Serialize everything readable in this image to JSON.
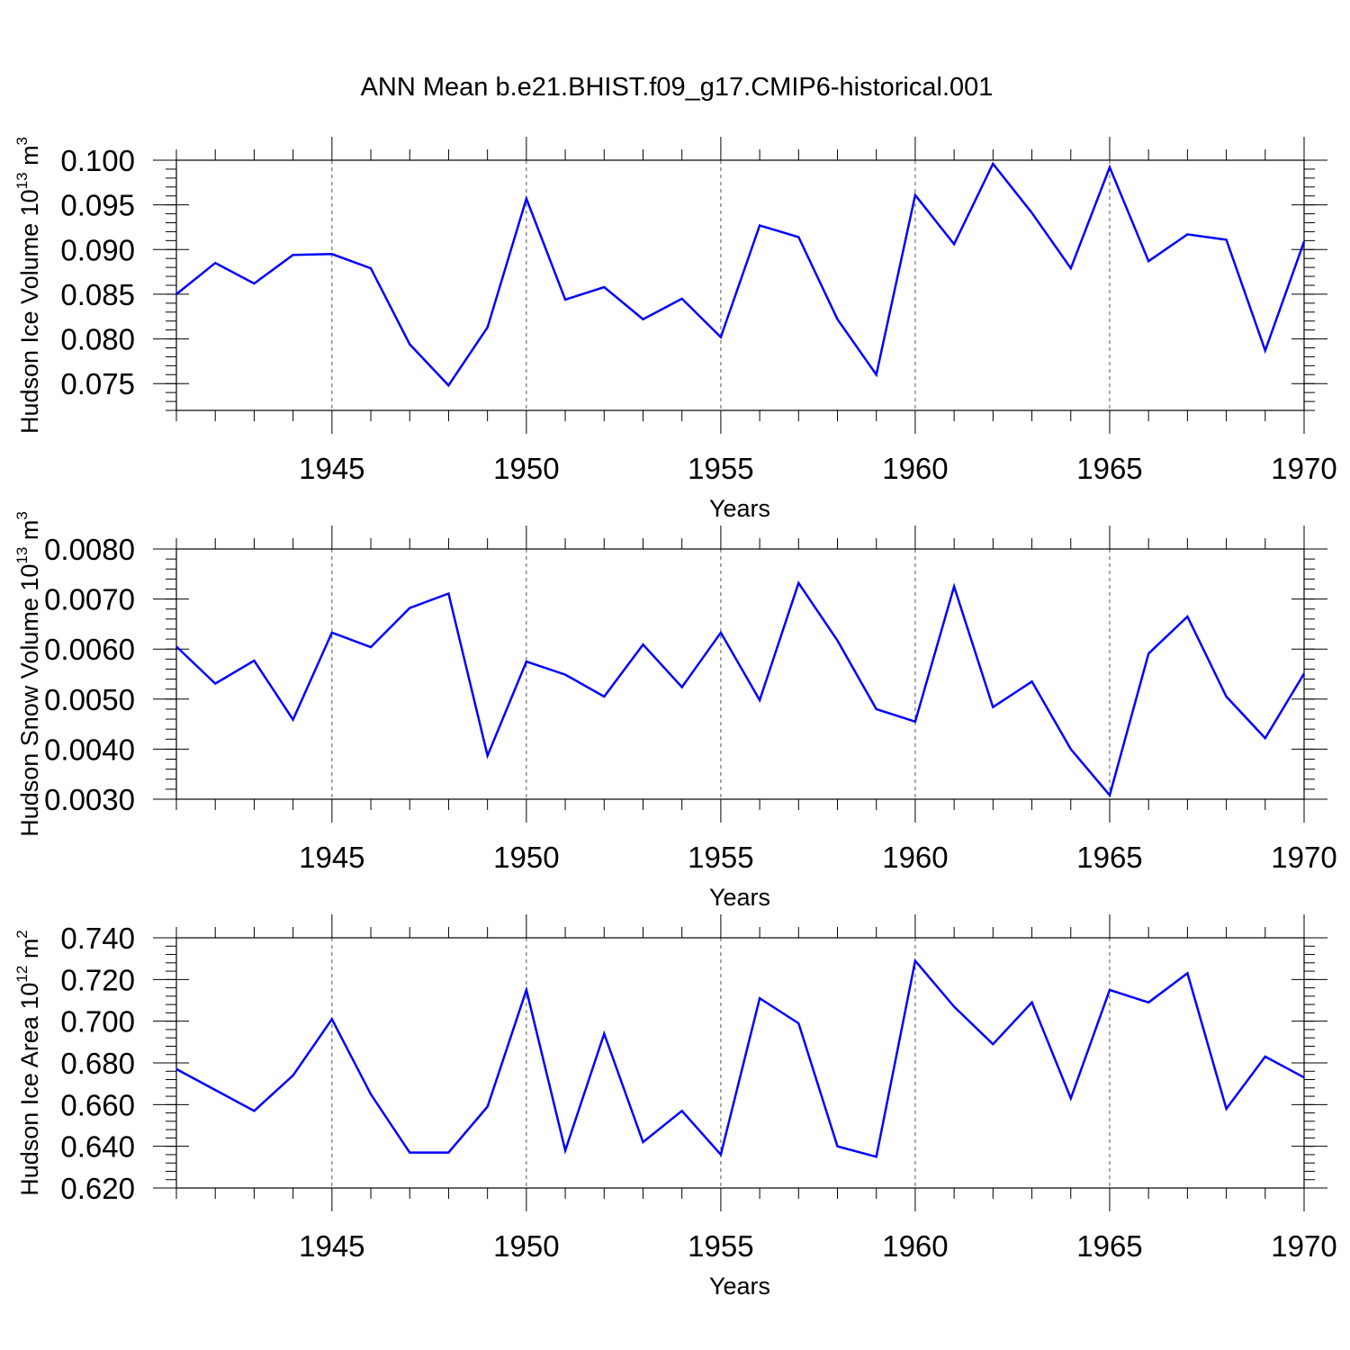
{
  "title": "ANN Mean b.e21.BHIST.f09_g17.CMIP6-historical.001",
  "chart_data": [
    {
      "type": "line",
      "ylabel": "Hudson Ice Volume 10",
      "ylabel_exp": "13",
      "ylabel_unit": " m",
      "ylabel_unit_exp": "3",
      "xlabel": "Years",
      "xlim": [
        1941,
        1970
      ],
      "ylim": [
        0.072,
        0.1
      ],
      "x_major_ticks": [
        1945,
        1950,
        1955,
        1960,
        1965,
        1970
      ],
      "x_tick_labels": [
        "1945",
        "1950",
        "1955",
        "1960",
        "1965",
        "1970"
      ],
      "y_major_ticks": [
        0.075,
        0.08,
        0.085,
        0.09,
        0.095,
        0.1
      ],
      "y_tick_labels": [
        "0.075",
        "0.080",
        "0.085",
        "0.090",
        "0.095",
        "0.100"
      ],
      "y_minor_step": 0.001,
      "grid": "vertical dashed at major x ticks",
      "color": "#0000ff",
      "x": [
        1941,
        1942,
        1943,
        1944,
        1945,
        1946,
        1947,
        1948,
        1949,
        1950,
        1951,
        1952,
        1953,
        1954,
        1955,
        1956,
        1957,
        1958,
        1959,
        1960,
        1961,
        1962,
        1963,
        1964,
        1965,
        1966,
        1967,
        1968,
        1969,
        1970
      ],
      "y": [
        0.085,
        0.0885,
        0.0862,
        0.0894,
        0.0895,
        0.0879,
        0.0794,
        0.0748,
        0.0813,
        0.0957,
        0.0844,
        0.0858,
        0.0822,
        0.0845,
        0.0802,
        0.0927,
        0.0914,
        0.0822,
        0.076,
        0.0961,
        0.0906,
        0.0996,
        0.0941,
        0.0879,
        0.0992,
        0.0887,
        0.0917,
        0.0911,
        0.0787,
        0.0909
      ]
    },
    {
      "type": "line",
      "ylabel": "Hudson Snow Volume 10",
      "ylabel_exp": "13",
      "ylabel_unit": " m",
      "ylabel_unit_exp": "3",
      "xlabel": "Years",
      "xlim": [
        1941,
        1970
      ],
      "ylim": [
        0.003,
        0.008
      ],
      "x_major_ticks": [
        1945,
        1950,
        1955,
        1960,
        1965,
        1970
      ],
      "x_tick_labels": [
        "1945",
        "1950",
        "1955",
        "1960",
        "1965",
        "1970"
      ],
      "y_major_ticks": [
        0.003,
        0.004,
        0.005,
        0.006,
        0.007,
        0.008
      ],
      "y_tick_labels": [
        "0.0030",
        "0.0040",
        "0.0050",
        "0.0060",
        "0.0070",
        "0.0080"
      ],
      "y_minor_step": 0.0002,
      "grid": "vertical dashed at major x ticks",
      "color": "#0000ff",
      "x": [
        1941,
        1942,
        1943,
        1944,
        1945,
        1946,
        1947,
        1948,
        1949,
        1950,
        1951,
        1952,
        1953,
        1954,
        1955,
        1956,
        1957,
        1958,
        1959,
        1960,
        1961,
        1962,
        1963,
        1964,
        1965,
        1966,
        1967,
        1968,
        1969,
        1970
      ],
      "y": [
        0.00605,
        0.00531,
        0.00577,
        0.00459,
        0.00633,
        0.00604,
        0.00682,
        0.00711,
        0.00387,
        0.00575,
        0.00549,
        0.00505,
        0.00609,
        0.00524,
        0.00633,
        0.00498,
        0.00732,
        0.00617,
        0.0048,
        0.00455,
        0.00725,
        0.00484,
        0.00535,
        0.004,
        0.00308,
        0.00591,
        0.00665,
        0.00505,
        0.00422,
        0.00551
      ]
    },
    {
      "type": "line",
      "ylabel": "Hudson Ice Area 10",
      "ylabel_exp": "12",
      "ylabel_unit": " m",
      "ylabel_unit_exp": "2",
      "xlabel": "Years",
      "xlim": [
        1941,
        1970
      ],
      "ylim": [
        0.62,
        0.74
      ],
      "x_major_ticks": [
        1945,
        1950,
        1955,
        1960,
        1965,
        1970
      ],
      "x_tick_labels": [
        "1945",
        "1950",
        "1955",
        "1960",
        "1965",
        "1970"
      ],
      "y_major_ticks": [
        0.62,
        0.64,
        0.66,
        0.68,
        0.7,
        0.72,
        0.74
      ],
      "y_tick_labels": [
        "0.620",
        "0.640",
        "0.660",
        "0.680",
        "0.700",
        "0.720",
        "0.740"
      ],
      "y_minor_step": 0.004,
      "grid": "vertical dashed at major x ticks",
      "color": "#0000ff",
      "x": [
        1941,
        1942,
        1943,
        1944,
        1945,
        1946,
        1947,
        1948,
        1949,
        1950,
        1951,
        1952,
        1953,
        1954,
        1955,
        1956,
        1957,
        1958,
        1959,
        1960,
        1961,
        1962,
        1963,
        1964,
        1965,
        1966,
        1967,
        1968,
        1969,
        1970
      ],
      "y": [
        0.677,
        0.667,
        0.657,
        0.674,
        0.701,
        0.665,
        0.637,
        0.637,
        0.659,
        0.715,
        0.638,
        0.694,
        0.642,
        0.657,
        0.636,
        0.711,
        0.699,
        0.64,
        0.635,
        0.729,
        0.707,
        0.689,
        0.709,
        0.663,
        0.715,
        0.709,
        0.723,
        0.658,
        0.683,
        0.673
      ]
    }
  ]
}
